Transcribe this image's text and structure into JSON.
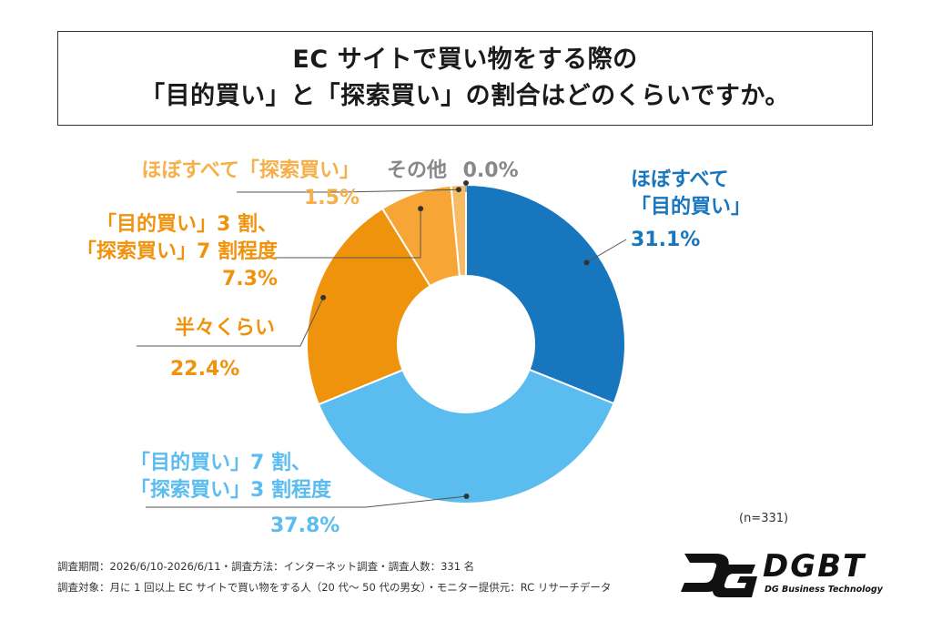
{
  "title": {
    "line1": "EC サイトで買い物をする際の",
    "line2": "「目的買い」と「探索買い」の割合はどのくらいですか。"
  },
  "chart_data": {
    "type": "pie",
    "donut": true,
    "slices": [
      {
        "label": [
          "ほぼすべて",
          "「目的買い」"
        ],
        "value": 31.1,
        "pct_text": "31.1%",
        "color": "#1776bd"
      },
      {
        "label": [
          "「目的買い」7 割、",
          "「探索買い」3 割程度"
        ],
        "value": 37.8,
        "pct_text": "37.8%",
        "color": "#5bbcef"
      },
      {
        "label": [
          "半々くらい"
        ],
        "value": 22.4,
        "pct_text": "22.4%",
        "color": "#f0930c"
      },
      {
        "label": [
          "「目的買い」3 割、",
          "「探索買い」7 割程度"
        ],
        "value": 7.3,
        "pct_text": "7.3%",
        "color": "#f7a534"
      },
      {
        "label": [
          "ほぼすべて「探索買い」"
        ],
        "value": 1.5,
        "pct_text": "1.5%",
        "color": "#f7bb63"
      },
      {
        "label": [
          "その他"
        ],
        "value": 0.0,
        "pct_text": "0.0%",
        "color": "#999999"
      }
    ]
  },
  "label_colors": {
    "dark_blue": "#1776bd",
    "light_blue": "#5bbcef",
    "orange": "#f0930c",
    "light_orange": "#f5b04b",
    "gray": "#888888"
  },
  "sample_note": "(n=331)",
  "footer": {
    "line1": "調査期間：2026/6/10-2026/6/11・調査方法：インターネット調査・調査人数：331 名",
    "line2": "調査対象：月に 1 回以上 EC サイトで買い物をする人（20 代～ 50 代の男女）・モニター提供元：RC リサーチデータ"
  },
  "logo": {
    "name": "DGBT",
    "tagline": "DG Business Technology"
  }
}
